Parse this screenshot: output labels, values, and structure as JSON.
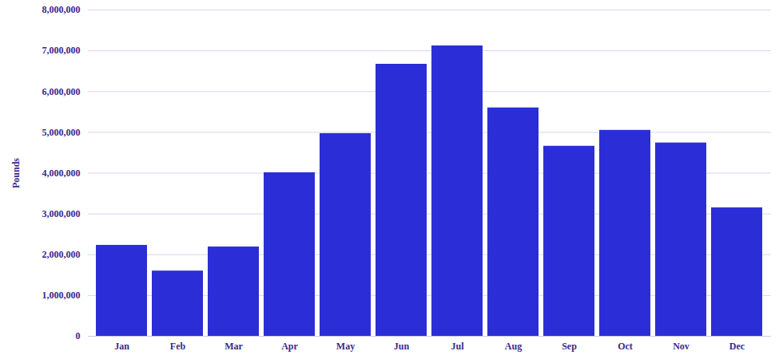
{
  "chart_data": {
    "type": "bar",
    "y_label": "Pounds",
    "categories": [
      "Jan",
      "Feb",
      "Mar",
      "Apr",
      "May",
      "Jun",
      "Jul",
      "Aug",
      "Sep",
      "Oct",
      "Nov",
      "Dec"
    ],
    "values": [
      2230000,
      1600000,
      2190000,
      4010000,
      4970000,
      6670000,
      7120000,
      5600000,
      4660000,
      5050000,
      4740000,
      3150000
    ],
    "color": "#2b2ed6",
    "ylim": [
      0,
      8000000
    ],
    "yticks": [
      0,
      {
        "value": 1000000,
        "label": "1,000,000"
      },
      {
        "value": 2000000,
        "label": "2,000,000"
      },
      {
        "value": 3000000,
        "label": "3,000,000"
      },
      {
        "value": 4000000,
        "label": "4,000,000"
      },
      {
        "value": 5000000,
        "label": "5,000,000"
      },
      {
        "value": 6000000,
        "label": "6,000,000"
      },
      {
        "value": 7000000,
        "label": "7,000,000"
      },
      {
        "value": 8000000,
        "label": "8,000,000"
      }
    ],
    "grid": true
  }
}
